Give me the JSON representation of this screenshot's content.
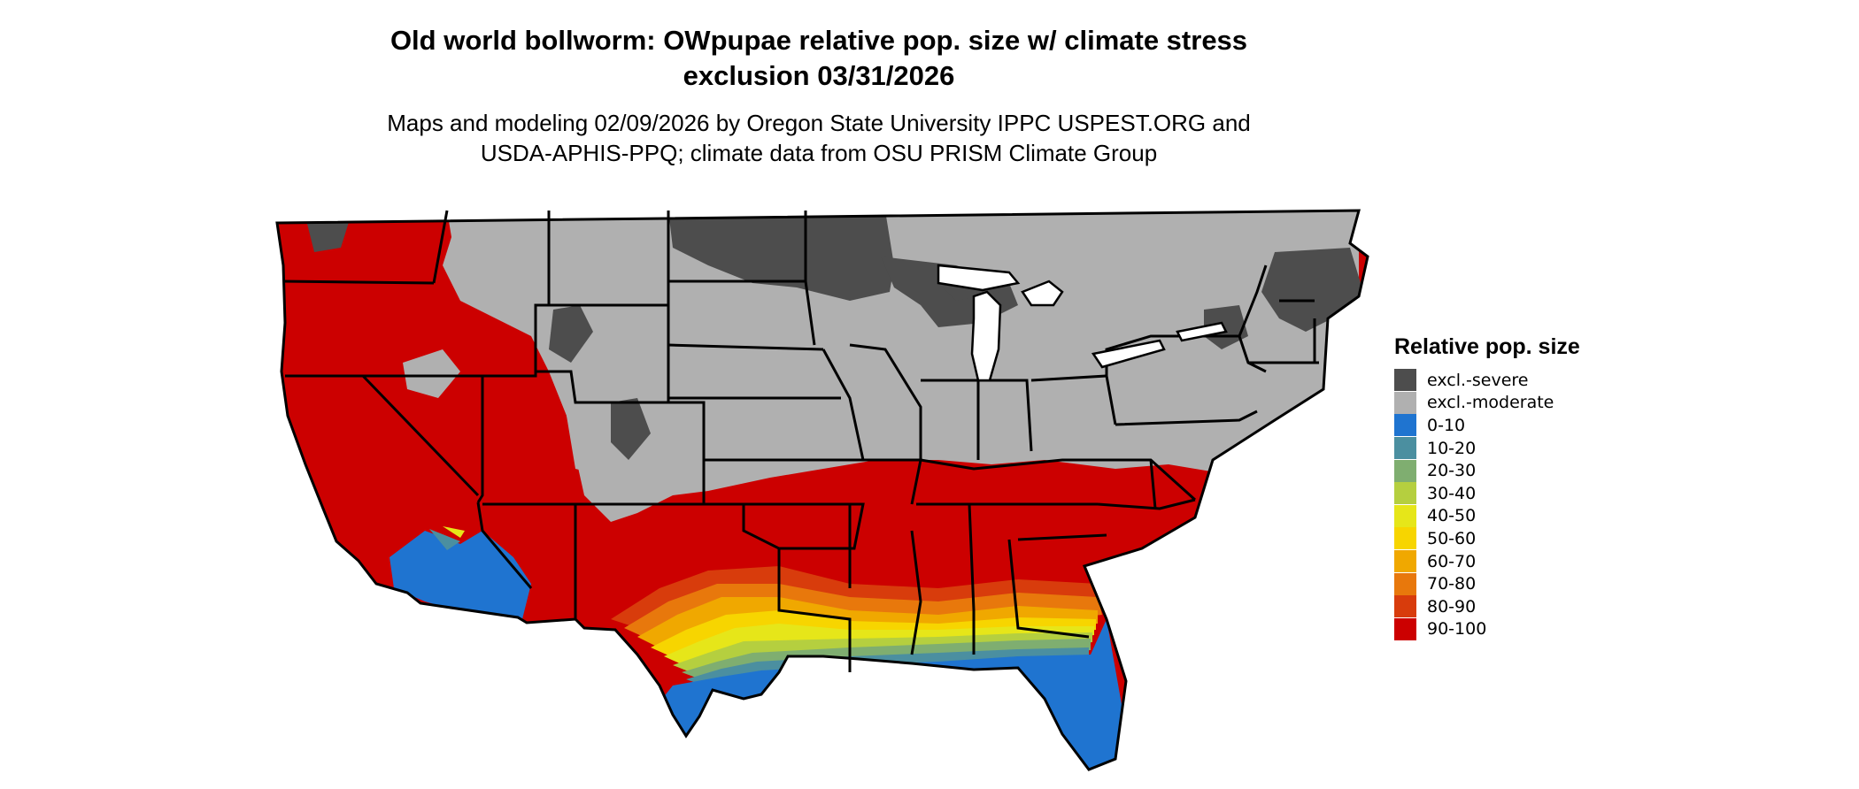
{
  "title": {
    "line1": "Old world bollworm: OWpupae relative pop. size w/ climate stress",
    "line2": "exclusion 03/31/2026"
  },
  "subtitle": {
    "line1": "Maps and modeling 02/09/2026 by Oregon State University IPPC USPEST.ORG and",
    "line2": "USDA-APHIS-PPQ; climate data from OSU PRISM Climate Group"
  },
  "legend": {
    "title": "Relative pop. size",
    "items": [
      {
        "label": "excl.-severe",
        "color": "#4d4d4d"
      },
      {
        "label": "excl.-moderate",
        "color": "#b0b0b0"
      },
      {
        "label": "0-10",
        "color": "#1f74d0"
      },
      {
        "label": "10-20",
        "color": "#4b8fa0"
      },
      {
        "label": "20-30",
        "color": "#7fae70"
      },
      {
        "label": "30-40",
        "color": "#b5cf3f"
      },
      {
        "label": "40-50",
        "color": "#e6e619"
      },
      {
        "label": "50-60",
        "color": "#f7d500"
      },
      {
        "label": "60-70",
        "color": "#f0a800"
      },
      {
        "label": "70-80",
        "color": "#e8780c"
      },
      {
        "label": "80-90",
        "color": "#d83c0c"
      },
      {
        "label": "90-100",
        "color": "#cc0000"
      }
    ]
  }
}
